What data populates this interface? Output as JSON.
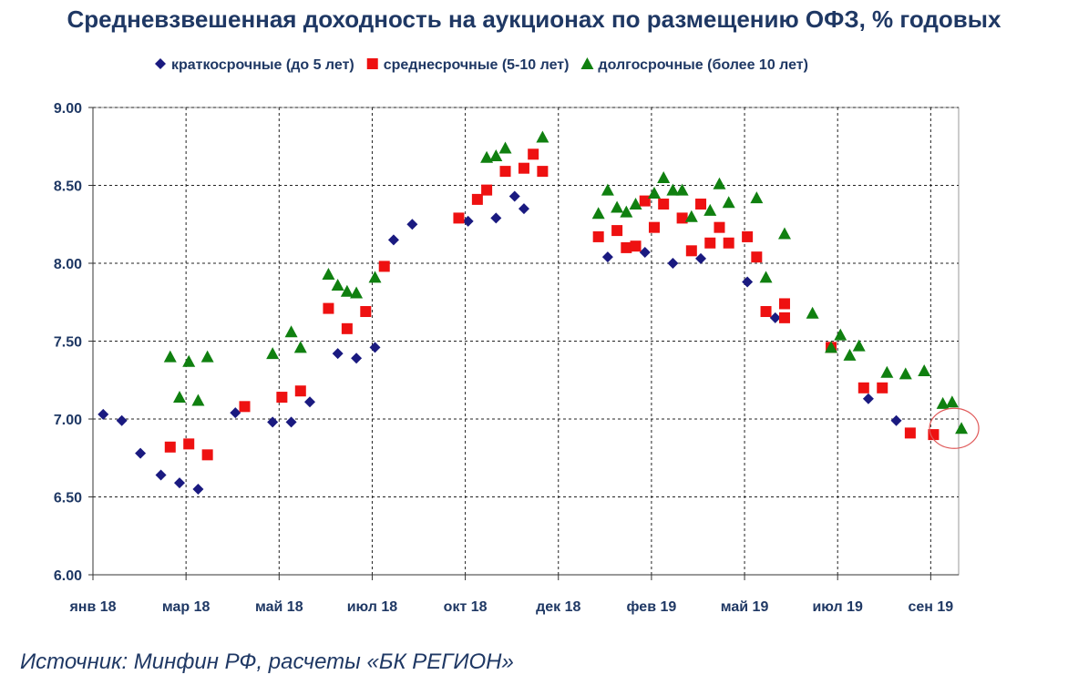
{
  "chart_data": {
    "type": "scatter",
    "title": "Средневзвешенная доходность на аукционах по размещению ОФЗ, % годовых",
    "source": "Источник: Минфин РФ, расчеты «БК РЕГИОН»",
    "ylim": [
      6.0,
      9.0
    ],
    "yticks": [
      "6.00",
      "6.50",
      "7.00",
      "7.50",
      "8.00",
      "8.50",
      "9.00"
    ],
    "ytick_values": [
      6.0,
      6.5,
      7.0,
      7.5,
      8.0,
      8.5,
      9.0
    ],
    "xlim": [
      0,
      18.6
    ],
    "xticks": [
      {
        "label": "янв 18",
        "value": 0
      },
      {
        "label": "мар 18",
        "value": 2
      },
      {
        "label": "май 18",
        "value": 4
      },
      {
        "label": "июл 18",
        "value": 6
      },
      {
        "label": "окт 18",
        "value": 8
      },
      {
        "label": "дек 18",
        "value": 10
      },
      {
        "label": "фев 19",
        "value": 12
      },
      {
        "label": "май 19",
        "value": 14
      },
      {
        "label": "июл 19",
        "value": 16
      },
      {
        "label": "сен 19",
        "value": 18
      }
    ],
    "grid": true,
    "legend_position": "top",
    "series": [
      {
        "name": "краткосрочные (до 5 лет)",
        "marker": "diamond",
        "color": "#1a1a80",
        "points": [
          [
            0.22,
            7.03
          ],
          [
            0.62,
            6.99
          ],
          [
            1.02,
            6.78
          ],
          [
            1.46,
            6.64
          ],
          [
            1.86,
            6.59
          ],
          [
            2.26,
            6.55
          ],
          [
            3.06,
            7.04
          ],
          [
            3.86,
            6.98
          ],
          [
            4.26,
            6.98
          ],
          [
            4.66,
            7.11
          ],
          [
            5.26,
            7.42
          ],
          [
            5.66,
            7.39
          ],
          [
            6.06,
            7.46
          ],
          [
            6.46,
            8.15
          ],
          [
            6.86,
            8.25
          ],
          [
            8.06,
            8.27
          ],
          [
            8.66,
            8.29
          ],
          [
            9.06,
            8.43
          ],
          [
            9.26,
            8.35
          ],
          [
            11.06,
            8.04
          ],
          [
            11.86,
            8.07
          ],
          [
            12.46,
            8.0
          ],
          [
            13.06,
            8.03
          ],
          [
            14.06,
            7.88
          ],
          [
            14.66,
            7.65
          ],
          [
            16.66,
            7.13
          ],
          [
            17.26,
            6.99
          ]
        ]
      },
      {
        "name": "среднесрочные (5-10 лет)",
        "marker": "square",
        "color": "#ee1111",
        "points": [
          [
            1.66,
            6.82
          ],
          [
            2.06,
            6.84
          ],
          [
            2.46,
            6.77
          ],
          [
            3.26,
            7.08
          ],
          [
            4.06,
            7.14
          ],
          [
            4.46,
            7.18
          ],
          [
            5.06,
            7.71
          ],
          [
            5.46,
            7.58
          ],
          [
            5.86,
            7.69
          ],
          [
            6.26,
            7.98
          ],
          [
            7.86,
            8.29
          ],
          [
            8.26,
            8.41
          ],
          [
            8.46,
            8.47
          ],
          [
            8.86,
            8.59
          ],
          [
            9.26,
            8.61
          ],
          [
            9.46,
            8.7
          ],
          [
            9.66,
            8.59
          ],
          [
            10.86,
            8.17
          ],
          [
            11.26,
            8.21
          ],
          [
            11.46,
            8.1
          ],
          [
            11.66,
            8.11
          ],
          [
            11.86,
            8.4
          ],
          [
            12.06,
            8.23
          ],
          [
            12.26,
            8.38
          ],
          [
            12.66,
            8.29
          ],
          [
            12.86,
            8.08
          ],
          [
            13.06,
            8.38
          ],
          [
            13.26,
            8.13
          ],
          [
            13.46,
            8.23
          ],
          [
            13.66,
            8.13
          ],
          [
            14.06,
            8.17
          ],
          [
            14.26,
            8.04
          ],
          [
            14.46,
            7.69
          ],
          [
            14.86,
            7.74
          ],
          [
            14.86,
            7.65
          ],
          [
            15.86,
            7.46
          ],
          [
            16.56,
            7.2
          ],
          [
            16.96,
            7.2
          ],
          [
            17.56,
            6.91
          ],
          [
            18.06,
            6.9
          ]
        ]
      },
      {
        "name": "долгосрочные (более 10 лет)",
        "marker": "triangle",
        "color": "#108010",
        "points": [
          [
            1.66,
            7.4
          ],
          [
            1.86,
            7.14
          ],
          [
            2.06,
            7.37
          ],
          [
            2.26,
            7.12
          ],
          [
            2.46,
            7.4
          ],
          [
            3.86,
            7.42
          ],
          [
            4.26,
            7.56
          ],
          [
            4.46,
            7.46
          ],
          [
            5.06,
            7.93
          ],
          [
            5.26,
            7.86
          ],
          [
            5.46,
            7.82
          ],
          [
            5.66,
            7.81
          ],
          [
            6.06,
            7.91
          ],
          [
            8.46,
            8.68
          ],
          [
            8.66,
            8.69
          ],
          [
            8.86,
            8.74
          ],
          [
            9.66,
            8.81
          ],
          [
            10.86,
            8.32
          ],
          [
            11.06,
            8.47
          ],
          [
            11.26,
            8.36
          ],
          [
            11.46,
            8.33
          ],
          [
            11.66,
            8.38
          ],
          [
            12.06,
            8.45
          ],
          [
            12.26,
            8.55
          ],
          [
            12.46,
            8.47
          ],
          [
            12.66,
            8.47
          ],
          [
            12.86,
            8.3
          ],
          [
            13.26,
            8.34
          ],
          [
            13.46,
            8.51
          ],
          [
            13.66,
            8.39
          ],
          [
            14.26,
            8.42
          ],
          [
            14.46,
            7.91
          ],
          [
            14.86,
            8.19
          ],
          [
            15.46,
            7.68
          ],
          [
            15.86,
            7.46
          ],
          [
            16.06,
            7.54
          ],
          [
            16.26,
            7.41
          ],
          [
            16.46,
            7.47
          ],
          [
            17.06,
            7.3
          ],
          [
            17.46,
            7.29
          ],
          [
            17.86,
            7.31
          ],
          [
            18.26,
            7.1
          ],
          [
            18.46,
            7.11
          ],
          [
            18.66,
            6.94
          ]
        ]
      }
    ],
    "highlight": {
      "x": 18.66,
      "y": 6.94,
      "shape": "circle",
      "color": "#e05a5a"
    }
  }
}
